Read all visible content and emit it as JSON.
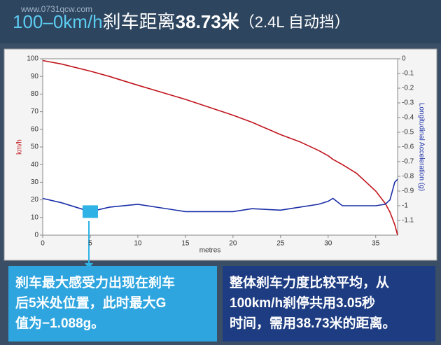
{
  "watermark": "www.0731qcw.com",
  "chart_data": {
    "type": "line",
    "title": [
      "100–0km/h",
      "刹车距离",
      "38.73米",
      "（2.4L 自动挡）"
    ],
    "x_label": "metres",
    "y_label": "km/h",
    "y2_label": "Longitudinal Acceleration (g)",
    "x": [
      0,
      2,
      5,
      7,
      10,
      15,
      20,
      22,
      25,
      27,
      29,
      30,
      30.5,
      31.5,
      33,
      35,
      36,
      36.5,
      37,
      37.3
    ],
    "series": [
      {
        "name": "km/h",
        "color": "#c0141c",
        "values": [
          99,
          97,
          93,
          90,
          85,
          77,
          68,
          64,
          57,
          53,
          48,
          45,
          43,
          40,
          35,
          25,
          18,
          13,
          6,
          0
        ]
      },
      {
        "name": "Longitudinal Acceleration (g)",
        "color": "#1a2ea8",
        "axis": "y2",
        "values": [
          -0.95,
          -0.98,
          -1.04,
          -1.01,
          -0.99,
          -1.04,
          -1.04,
          -1.02,
          -1.03,
          -1.01,
          -0.99,
          -0.97,
          -0.95,
          -1.0,
          -1.0,
          -1.0,
          -0.99,
          -0.96,
          -0.84,
          -0.82
        ]
      }
    ],
    "highlight_index": 2,
    "highlight_color": "#2fb3e6",
    "xlim": [
      0,
      37.3
    ],
    "xticks": [
      0,
      5,
      10,
      15,
      20,
      25,
      30,
      35
    ],
    "ylim": [
      0,
      100
    ],
    "yticks": [
      0,
      10,
      20,
      30,
      40,
      50,
      60,
      70,
      80,
      90,
      100
    ],
    "y2lim": [
      -1.2,
      0
    ],
    "y2ticks": [
      0,
      -0.1,
      -0.2,
      -0.3,
      -0.4,
      -0.5,
      -0.6,
      -0.7,
      -0.8,
      -0.9,
      -1,
      -1.1
    ],
    "annotations": [
      [
        "刹车最大感受力出现在刹车",
        "后5米处位置，此时最大G",
        "值为−1.088g。"
      ],
      [
        "整体刹车力度比较平均，从",
        "100km/h刹停共用3.05秒",
        "时间，需用38.73米的距离。"
      ]
    ]
  }
}
